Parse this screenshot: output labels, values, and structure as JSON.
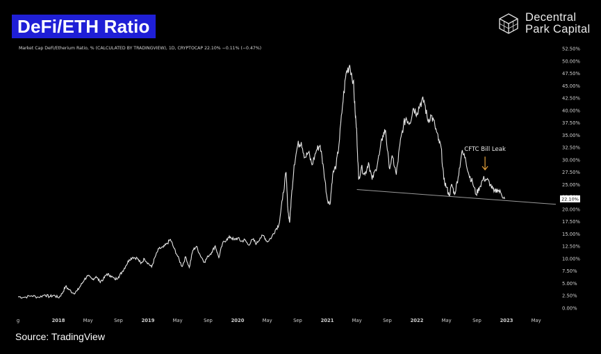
{
  "header": {
    "title": "DeFi/ETH Ratio",
    "logo_line1": "Decentral",
    "logo_line2": "Park Capital",
    "logo_icon": "cube-icon"
  },
  "source": "Source: TradingView",
  "colors": {
    "background": "#000000",
    "title_bg": "#1f1fd6",
    "line": "#e6e6e6",
    "arrow": "#e8a33c",
    "trend": "#9a9a9a"
  },
  "chart_data": {
    "type": "line",
    "legend_text": "Market Cap DeFi/Etherium Ratio, %  (CALCULATED BY TRADINGVIEW), 1D, CRYPTOCAP  22.10%  −0.11% (−0.47%)",
    "y_ticks": [
      "52.50%",
      "50.00%",
      "47.50%",
      "45.00%",
      "42.50%",
      "40.00%",
      "37.50%",
      "35.00%",
      "32.50%",
      "30.00%",
      "27.50%",
      "25.00%",
      "22.50%",
      "20.00%",
      "17.50%",
      "15.00%",
      "12.50%",
      "10.00%",
      "7.50%",
      "5.00%",
      "2.50%",
      "0.00%"
    ],
    "ylim": [
      0,
      52.5
    ],
    "x_ticks": [
      {
        "label": "g",
        "t": 2017.55
      },
      {
        "label": "2018",
        "t": 2018.0
      },
      {
        "label": "May",
        "t": 2018.33
      },
      {
        "label": "Sep",
        "t": 2018.67
      },
      {
        "label": "2019",
        "t": 2019.0
      },
      {
        "label": "May",
        "t": 2019.33
      },
      {
        "label": "Sep",
        "t": 2019.67
      },
      {
        "label": "2020",
        "t": 2020.0
      },
      {
        "label": "May",
        "t": 2020.33
      },
      {
        "label": "Sep",
        "t": 2020.67
      },
      {
        "label": "2021",
        "t": 2021.0
      },
      {
        "label": "May",
        "t": 2021.33
      },
      {
        "label": "Sep",
        "t": 2021.67
      },
      {
        "label": "2022",
        "t": 2022.0
      },
      {
        "label": "May",
        "t": 2022.33
      },
      {
        "label": "Sep",
        "t": 2022.67
      },
      {
        "label": "2023",
        "t": 2023.0
      },
      {
        "label": "May",
        "t": 2023.33
      }
    ],
    "xlim": [
      2017.55,
      2023.55
    ],
    "last_value_label": "22.10%",
    "last_value": 22.1,
    "annotation": {
      "text": "CFTC Bill Leak",
      "t": 2022.76,
      "value": 27.0
    },
    "trendline": {
      "from": {
        "t": 2021.33,
        "value": 24.0
      },
      "to": {
        "t": 2023.55,
        "value": 21.0
      }
    },
    "series": [
      {
        "points": [
          [
            2017.55,
            2.3
          ],
          [
            2017.62,
            2.2
          ],
          [
            2017.7,
            2.5
          ],
          [
            2017.78,
            2.2
          ],
          [
            2017.85,
            2.7
          ],
          [
            2017.9,
            2.3
          ],
          [
            2017.95,
            2.6
          ],
          [
            2018.0,
            2.1
          ],
          [
            2018.04,
            2.9
          ],
          [
            2018.08,
            4.4
          ],
          [
            2018.12,
            3.7
          ],
          [
            2018.17,
            3.0
          ],
          [
            2018.21,
            3.5
          ],
          [
            2018.25,
            4.6
          ],
          [
            2018.29,
            5.8
          ],
          [
            2018.33,
            6.5
          ],
          [
            2018.38,
            5.8
          ],
          [
            2018.42,
            6.4
          ],
          [
            2018.46,
            5.4
          ],
          [
            2018.5,
            5.8
          ],
          [
            2018.54,
            6.9
          ],
          [
            2018.58,
            6.6
          ],
          [
            2018.63,
            5.8
          ],
          [
            2018.67,
            6.3
          ],
          [
            2018.71,
            7.3
          ],
          [
            2018.75,
            8.5
          ],
          [
            2018.79,
            9.8
          ],
          [
            2018.83,
            10.3
          ],
          [
            2018.88,
            10.1
          ],
          [
            2018.92,
            9.0
          ],
          [
            2018.96,
            10.0
          ],
          [
            2019.0,
            9.1
          ],
          [
            2019.04,
            8.3
          ],
          [
            2019.08,
            10.4
          ],
          [
            2019.12,
            12.0
          ],
          [
            2019.17,
            12.3
          ],
          [
            2019.21,
            13.0
          ],
          [
            2019.25,
            13.9
          ],
          [
            2019.29,
            12.1
          ],
          [
            2019.33,
            10.5
          ],
          [
            2019.38,
            8.4
          ],
          [
            2019.42,
            10.4
          ],
          [
            2019.46,
            8.2
          ],
          [
            2019.5,
            11.7
          ],
          [
            2019.54,
            12.5
          ],
          [
            2019.58,
            10.8
          ],
          [
            2019.63,
            9.3
          ],
          [
            2019.67,
            10.5
          ],
          [
            2019.71,
            11.3
          ],
          [
            2019.75,
            12.6
          ],
          [
            2019.79,
            10.2
          ],
          [
            2019.83,
            13.0
          ],
          [
            2019.88,
            14.0
          ],
          [
            2019.92,
            14.4
          ],
          [
            2019.96,
            13.8
          ],
          [
            2020.0,
            14.2
          ],
          [
            2020.04,
            13.5
          ],
          [
            2020.08,
            13.8
          ],
          [
            2020.12,
            12.8
          ],
          [
            2020.17,
            13.9
          ],
          [
            2020.21,
            13.0
          ],
          [
            2020.25,
            14.2
          ],
          [
            2020.29,
            14.7
          ],
          [
            2020.33,
            13.4
          ],
          [
            2020.38,
            14.4
          ],
          [
            2020.42,
            15.8
          ],
          [
            2020.46,
            16.9
          ],
          [
            2020.5,
            22.0
          ],
          [
            2020.54,
            27.5
          ],
          [
            2020.56,
            20.0
          ],
          [
            2020.58,
            17.3
          ],
          [
            2020.6,
            22.5
          ],
          [
            2020.63,
            29.0
          ],
          [
            2020.67,
            33.0
          ],
          [
            2020.71,
            33.6
          ],
          [
            2020.75,
            30.5
          ],
          [
            2020.79,
            31.5
          ],
          [
            2020.83,
            29.0
          ],
          [
            2020.88,
            32.0
          ],
          [
            2020.92,
            33.0
          ],
          [
            2020.96,
            28.0
          ],
          [
            2021.0,
            22.0
          ],
          [
            2021.03,
            21.0
          ],
          [
            2021.06,
            27.0
          ],
          [
            2021.1,
            29.0
          ],
          [
            2021.13,
            33.0
          ],
          [
            2021.17,
            41.0
          ],
          [
            2021.21,
            47.5
          ],
          [
            2021.25,
            49.2
          ],
          [
            2021.29,
            46.0
          ],
          [
            2021.31,
            40.0
          ],
          [
            2021.33,
            35.0
          ],
          [
            2021.35,
            26.0
          ],
          [
            2021.38,
            28.5
          ],
          [
            2021.42,
            27.0
          ],
          [
            2021.46,
            29.5
          ],
          [
            2021.5,
            26.0
          ],
          [
            2021.54,
            28.0
          ],
          [
            2021.58,
            31.0
          ],
          [
            2021.62,
            35.0
          ],
          [
            2021.65,
            36.0
          ],
          [
            2021.69,
            28.5
          ],
          [
            2021.73,
            30.5
          ],
          [
            2021.77,
            27.0
          ],
          [
            2021.81,
            33.0
          ],
          [
            2021.85,
            37.0
          ],
          [
            2021.88,
            38.5
          ],
          [
            2021.92,
            37.5
          ],
          [
            2021.96,
            40.5
          ],
          [
            2022.0,
            39.5
          ],
          [
            2022.04,
            41.5
          ],
          [
            2022.08,
            42.0
          ],
          [
            2022.12,
            38.0
          ],
          [
            2022.16,
            39.0
          ],
          [
            2022.2,
            37.0
          ],
          [
            2022.24,
            34.0
          ],
          [
            2022.27,
            32.5
          ],
          [
            2022.3,
            26.0
          ],
          [
            2022.33,
            24.5
          ],
          [
            2022.36,
            22.8
          ],
          [
            2022.39,
            25.0
          ],
          [
            2022.42,
            23.0
          ],
          [
            2022.46,
            26.5
          ],
          [
            2022.5,
            31.5
          ],
          [
            2022.54,
            30.5
          ],
          [
            2022.58,
            27.0
          ],
          [
            2022.62,
            25.5
          ],
          [
            2022.66,
            23.0
          ],
          [
            2022.7,
            24.5
          ],
          [
            2022.74,
            26.2
          ],
          [
            2022.78,
            26.0
          ],
          [
            2022.82,
            25.0
          ],
          [
            2022.86,
            23.5
          ],
          [
            2022.9,
            24.0
          ],
          [
            2022.94,
            23.2
          ],
          [
            2022.98,
            22.1
          ]
        ]
      }
    ]
  }
}
